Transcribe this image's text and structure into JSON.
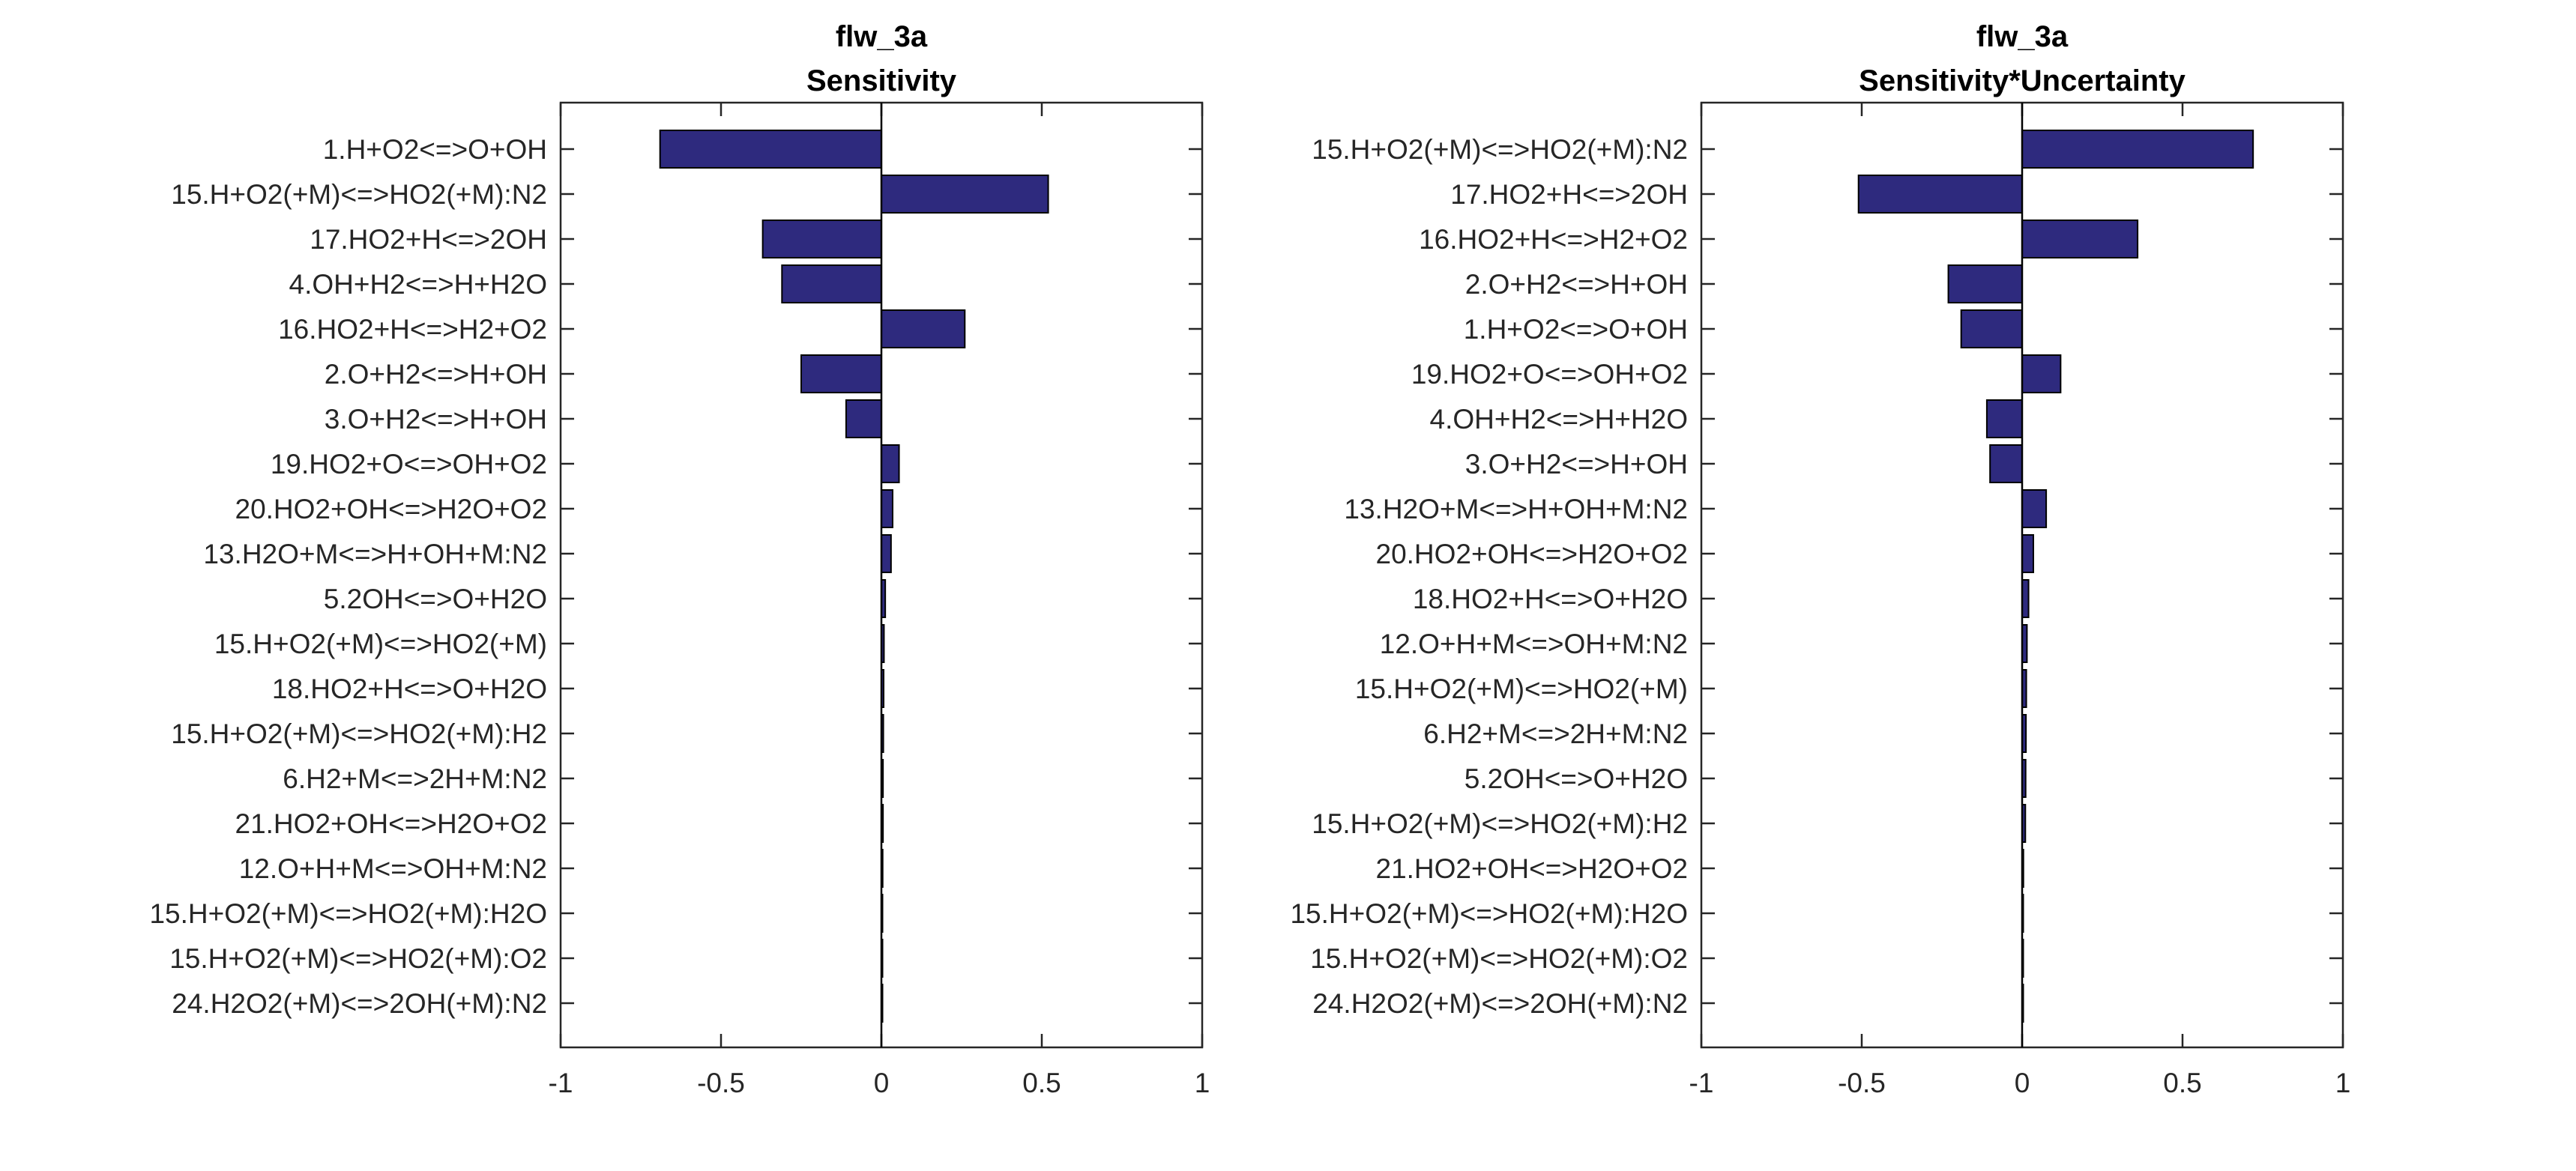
{
  "chart_data": [
    {
      "type": "bar",
      "orientation": "horizontal",
      "title": "flw_3a",
      "subtitle": "Sensitivity",
      "xlabel": "",
      "ylabel": "",
      "xlim": [
        -1,
        1
      ],
      "xticks": [
        "-1",
        "-0.5",
        "0",
        "0.5",
        "1"
      ],
      "bar_color": "#2e2a7e",
      "categories": [
        "1.H+O2<=>O+OH",
        "15.H+O2(+M)<=>HO2(+M):N2",
        "17.HO2+H<=>2OH",
        "4.OH+H2<=>H+H2O",
        "16.HO2+H<=>H2+O2",
        "2.O+H2<=>H+OH",
        "3.O+H2<=>H+OH",
        "19.HO2+O<=>OH+O2",
        "20.HO2+OH<=>H2O+O2",
        "13.H2O+M<=>H+OH+M:N2",
        "5.2OH<=>O+H2O",
        "15.H+O2(+M)<=>HO2(+M)",
        "18.HO2+H<=>O+H2O",
        "15.H+O2(+M)<=>HO2(+M):H2",
        "6.H2+M<=>2H+M:N2",
        "21.HO2+OH<=>H2O+O2",
        "12.O+H+M<=>OH+M:N2",
        "15.H+O2(+M)<=>HO2(+M):H2O",
        "15.H+O2(+M)<=>HO2(+M):O2",
        "24.H2O2(+M)<=>2OH(+M):N2"
      ],
      "values": [
        -0.69,
        0.52,
        -0.37,
        -0.31,
        0.26,
        -0.25,
        -0.11,
        0.055,
        0.035,
        0.03,
        0.012,
        0.008,
        0.007,
        0.006,
        0.005,
        0.005,
        0.004,
        0.003,
        0.003,
        0.002
      ]
    },
    {
      "type": "bar",
      "orientation": "horizontal",
      "title": "flw_3a",
      "subtitle": "Sensitivity*Uncertainty",
      "xlabel": "",
      "ylabel": "",
      "xlim": [
        -1,
        1
      ],
      "xticks": [
        "-1",
        "-0.5",
        "0",
        "0.5",
        "1"
      ],
      "bar_color": "#2e2a7e",
      "categories": [
        "15.H+O2(+M)<=>HO2(+M):N2",
        "17.HO2+H<=>2OH",
        "16.HO2+H<=>H2+O2",
        "2.O+H2<=>H+OH",
        "1.H+O2<=>O+OH",
        "19.HO2+O<=>OH+O2",
        "4.OH+H2<=>H+H2O",
        "3.O+H2<=>H+OH",
        "13.H2O+M<=>H+OH+M:N2",
        "20.HO2+OH<=>H2O+O2",
        "18.HO2+H<=>O+H2O",
        "12.O+H+M<=>OH+M:N2",
        "15.H+O2(+M)<=>HO2(+M)",
        "6.H2+M<=>2H+M:N2",
        "5.2OH<=>O+H2O",
        "15.H+O2(+M)<=>HO2(+M):H2",
        "21.HO2+OH<=>H2O+O2",
        "15.H+O2(+M)<=>HO2(+M):H2O",
        "15.H+O2(+M)<=>HO2(+M):O2",
        "24.H2O2(+M)<=>2OH(+M):N2"
      ],
      "values": [
        0.72,
        -0.51,
        0.36,
        -0.23,
        -0.19,
        0.12,
        -0.11,
        -0.1,
        0.075,
        0.035,
        0.02,
        0.015,
        0.013,
        0.012,
        0.011,
        0.01,
        0.004,
        0.003,
        0.002,
        0.002
      ]
    }
  ]
}
